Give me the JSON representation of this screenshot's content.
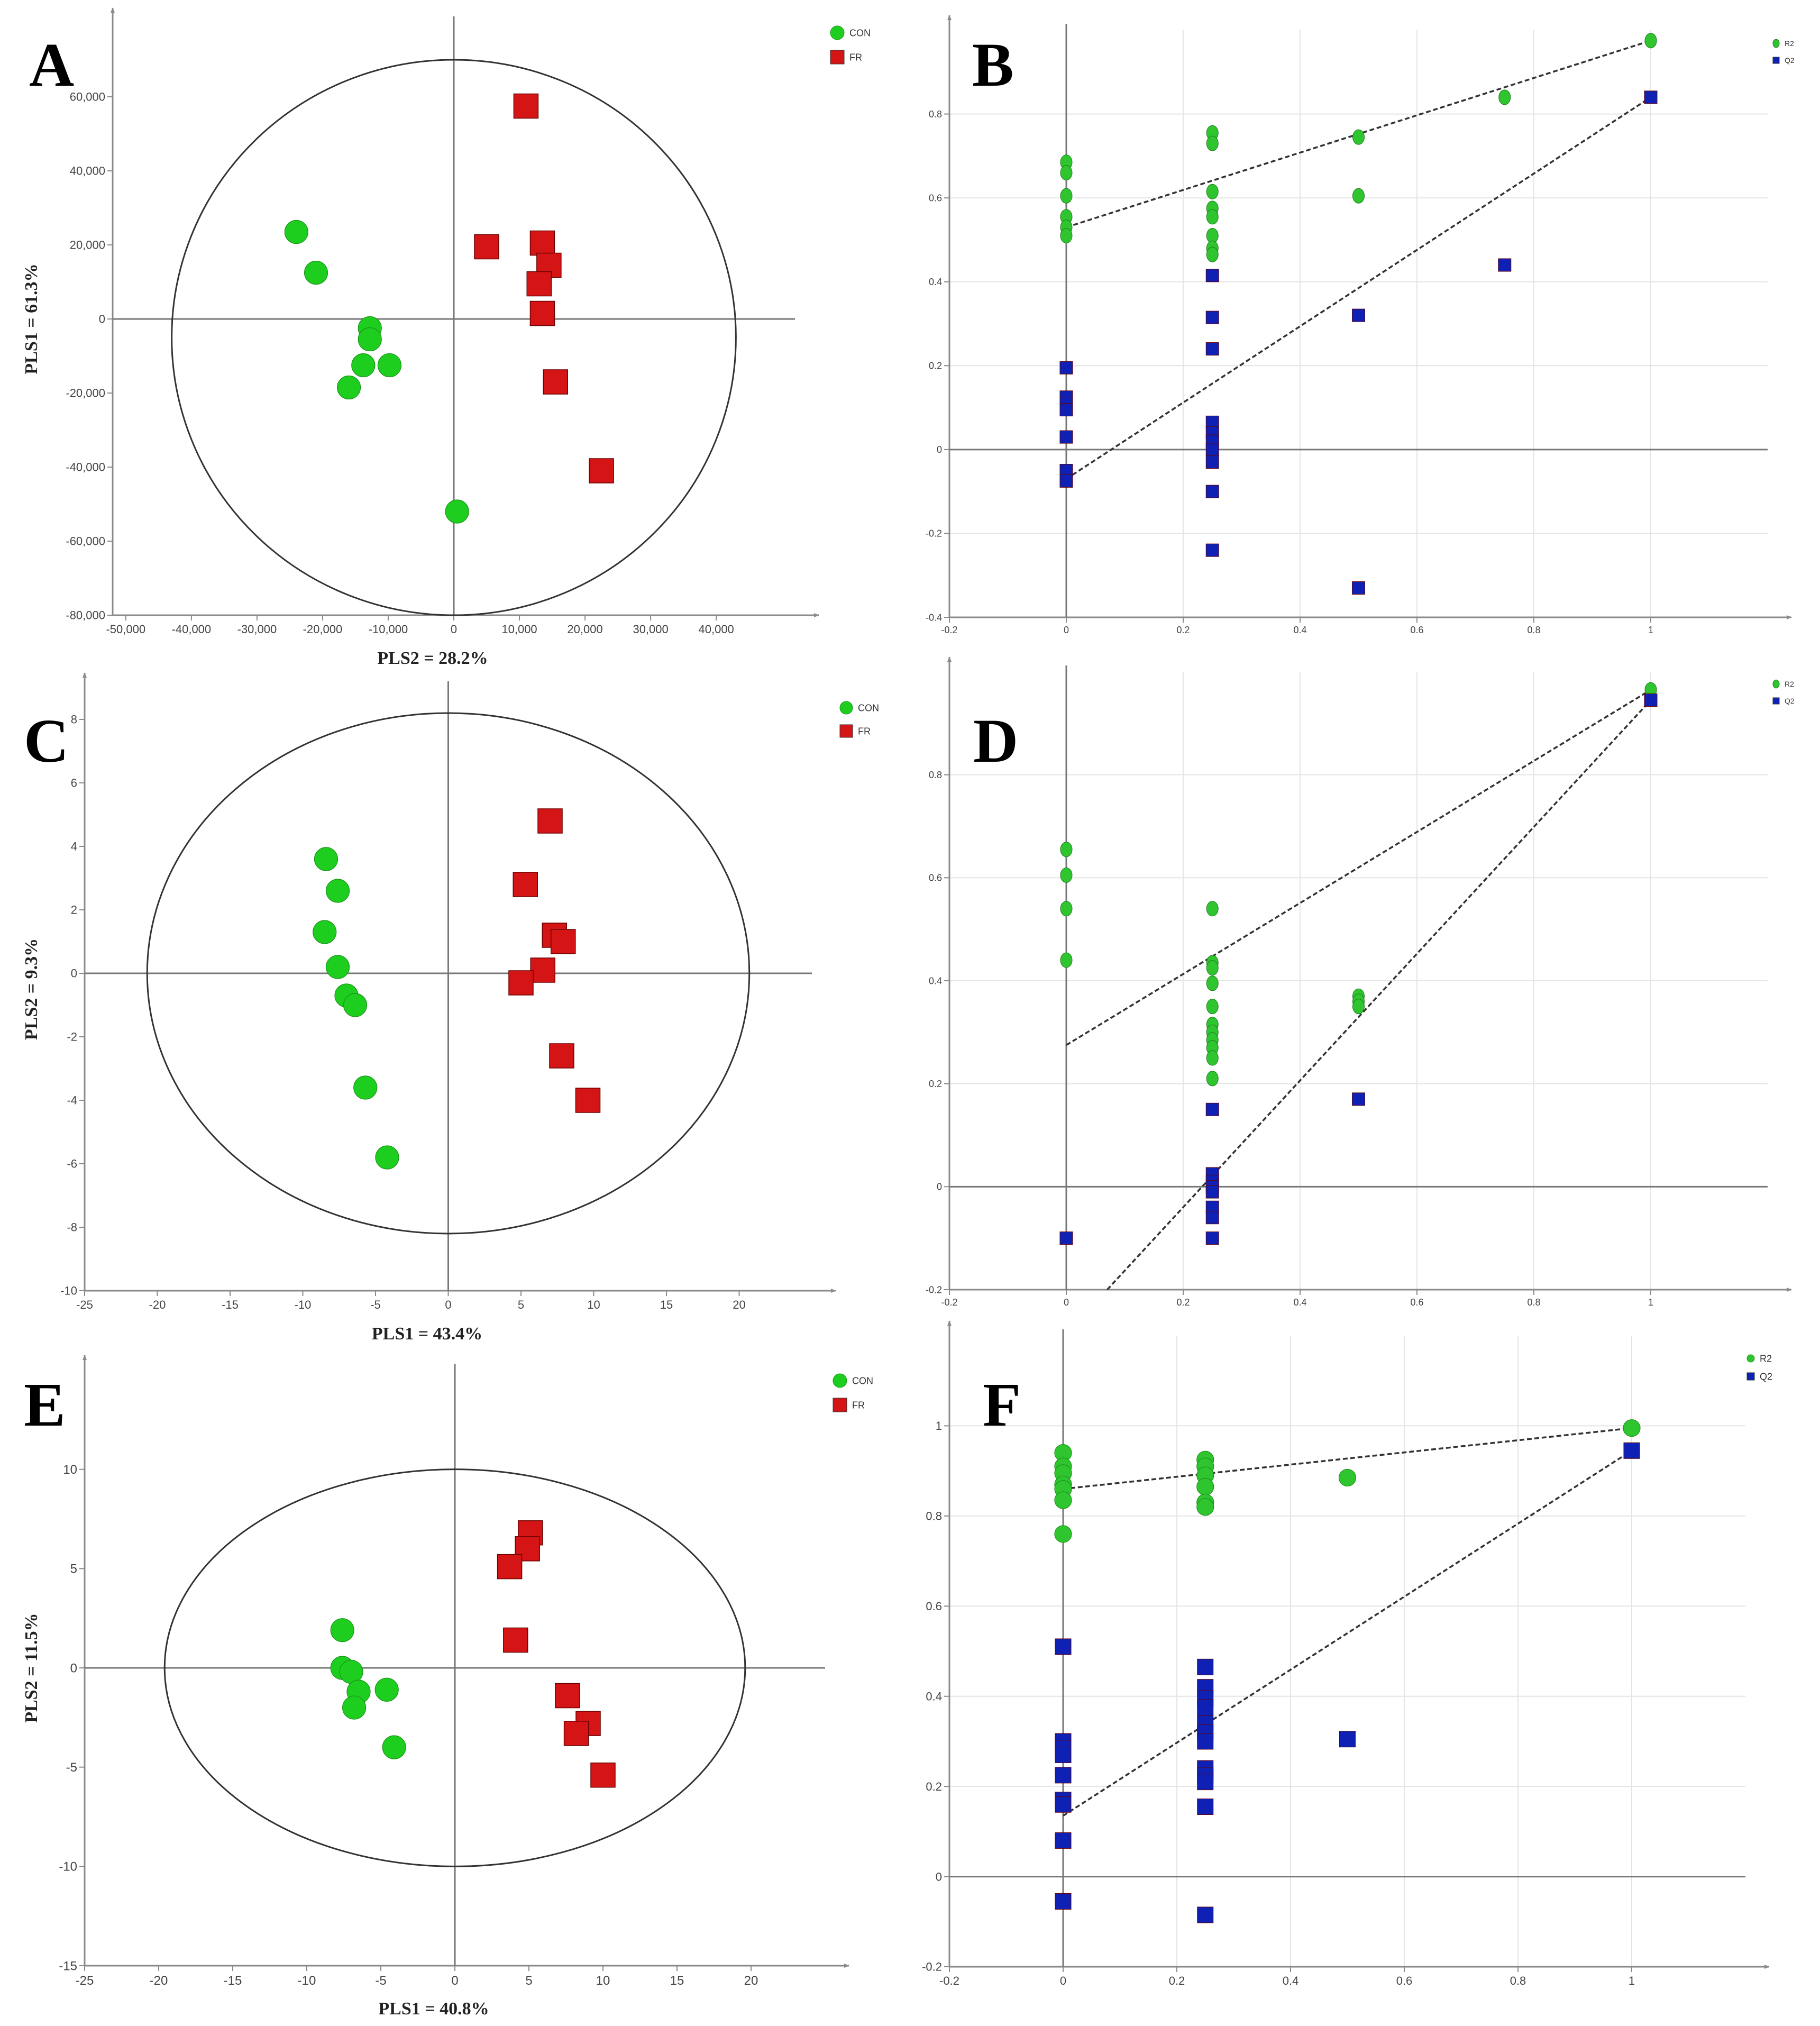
{
  "colors": {
    "con": "#1ECE1E",
    "fr": "#D51515",
    "r2": "#2FC52F",
    "q2": "#0E21B4",
    "axis": "#8a8a8a",
    "ellipse": "#333333",
    "grid": "#e4e4e4"
  },
  "chart_data": [
    {
      "id": "A",
      "letter": "A",
      "type": "scatter",
      "xlabel": "PLS2 = 28.2%",
      "ylabel": "PLS1 = 61.3%",
      "xlim": [
        -52000,
        52000
      ],
      "ylim": [
        -80000,
        80000
      ],
      "xticks": [
        -50000,
        -40000,
        -30000,
        -20000,
        -10000,
        0,
        10000,
        20000,
        30000,
        40000
      ],
      "xtick_labels": [
        "-50,000",
        "-40,000",
        "-30,000",
        "-20,000",
        "-10,000",
        "0",
        "10,000",
        "20,000",
        "30,000",
        "40,000"
      ],
      "yticks": [
        -80000,
        -60000,
        -40000,
        -20000,
        0,
        20000,
        40000,
        60000
      ],
      "ytick_labels": [
        "-80,000",
        "-60,000",
        "-40,000",
        "-20,000",
        "0",
        "20,000",
        "40,000",
        "60,000"
      ],
      "ellipse": {
        "cx": 0,
        "cy": -5000,
        "rx": 43000,
        "ry": 75000
      },
      "legend": [
        "CON",
        "FR"
      ],
      "series": [
        {
          "name": "CON",
          "marker": "circle",
          "points": [
            [
              -24000,
              23500
            ],
            [
              -21000,
              12500
            ],
            [
              -12800,
              -2500
            ],
            [
              -12800,
              -5500
            ],
            [
              -13800,
              -12500
            ],
            [
              -9800,
              -12500
            ],
            [
              -16000,
              -18500
            ],
            [
              500,
              -52000
            ]
          ]
        },
        {
          "name": "FR",
          "marker": "square",
          "points": [
            [
              11000,
              57500
            ],
            [
              5000,
              19500
            ],
            [
              13500,
              20500
            ],
            [
              14500,
              14500
            ],
            [
              13000,
              9500
            ],
            [
              13500,
              1500
            ],
            [
              15500,
              -17000
            ],
            [
              22500,
              -41000
            ]
          ]
        }
      ]
    },
    {
      "id": "B",
      "letter": "B",
      "type": "scatter",
      "xlabel": "",
      "ylabel": "",
      "xlim": [
        -0.2,
        1.2
      ],
      "ylim": [
        -0.4,
        1.0
      ],
      "xticks": [
        -0.2,
        0,
        0.2,
        0.4,
        0.6,
        0.8,
        1
      ],
      "xtick_labels": [
        "-0.2",
        "0",
        "0.2",
        "0.4",
        "0.6",
        "0.8",
        "1"
      ],
      "yticks": [
        -0.4,
        -0.2,
        0,
        0.2,
        0.4,
        0.6,
        0.8
      ],
      "ytick_labels": [
        "-0.4",
        "-0.2",
        "0",
        "0.2",
        "0.4",
        "0.6",
        "0.8"
      ],
      "legend": [
        "R2",
        "Q2"
      ],
      "series": [
        {
          "name": "R2",
          "marker": "ellipse",
          "points": [
            [
              0,
              0.685
            ],
            [
              0,
              0.66
            ],
            [
              0,
              0.605
            ],
            [
              0,
              0.555
            ],
            [
              0,
              0.53
            ],
            [
              0,
              0.51
            ],
            [
              0.25,
              0.755
            ],
            [
              0.25,
              0.73
            ],
            [
              0.25,
              0.615
            ],
            [
              0.25,
              0.575
            ],
            [
              0.25,
              0.555
            ],
            [
              0.25,
              0.51
            ],
            [
              0.25,
              0.48
            ],
            [
              0.25,
              0.465
            ],
            [
              0.5,
              0.745
            ],
            [
              0.5,
              0.605
            ],
            [
              0.75,
              0.84
            ],
            [
              1,
              0.975
            ]
          ]
        },
        {
          "name": "Q2",
          "marker": "square",
          "points": [
            [
              0,
              0.195
            ],
            [
              0,
              0.125
            ],
            [
              0,
              0.11
            ],
            [
              0,
              0.095
            ],
            [
              0,
              0.03
            ],
            [
              0,
              -0.05
            ],
            [
              0,
              -0.075
            ],
            [
              0.25,
              0.415
            ],
            [
              0.25,
              0.315
            ],
            [
              0.25,
              0.24
            ],
            [
              0.25,
              0.065
            ],
            [
              0.25,
              0.04
            ],
            [
              0.25,
              0.02
            ],
            [
              0.25,
              0.0
            ],
            [
              0.25,
              -0.03
            ],
            [
              0.25,
              -0.1
            ],
            [
              0.25,
              -0.24
            ],
            [
              0.5,
              0.32
            ],
            [
              0.5,
              -0.33
            ],
            [
              0.75,
              0.44
            ],
            [
              1,
              0.84
            ]
          ]
        }
      ],
      "lines": [
        {
          "name": "R2 regression",
          "from": [
            0,
            0.53
          ],
          "to": [
            1,
            0.975
          ]
        },
        {
          "name": "Q2 regression",
          "from": [
            0,
            -0.07
          ],
          "to": [
            1,
            0.84
          ]
        }
      ]
    },
    {
      "id": "C",
      "letter": "C",
      "type": "scatter",
      "xlabel": "PLS1 = 43.4%",
      "ylabel": "PLS2 = 9.3%",
      "xlim": [
        -25,
        25
      ],
      "ylim": [
        -10,
        9
      ],
      "xticks": [
        -25,
        -20,
        -15,
        -10,
        -5,
        0,
        5,
        10,
        15,
        20
      ],
      "xtick_labels": [
        "-25",
        "-20",
        "-15",
        "-10",
        "-5",
        "0",
        "5",
        "10",
        "15",
        "20"
      ],
      "yticks": [
        -10,
        -8,
        -6,
        -4,
        -2,
        0,
        2,
        4,
        6,
        8
      ],
      "ytick_labels": [
        "-10",
        "-8",
        "-6",
        "-4",
        "-2",
        "0",
        "2",
        "4",
        "6",
        "8"
      ],
      "ellipse": {
        "cx": 0,
        "cy": 0,
        "rx": 20.7,
        "ry": 8.2
      },
      "legend": [
        "CON",
        "FR"
      ],
      "series": [
        {
          "name": "CON",
          "marker": "circle",
          "points": [
            [
              -8.4,
              3.6
            ],
            [
              -7.6,
              2.6
            ],
            [
              -8.5,
              1.3
            ],
            [
              -7.6,
              0.2
            ],
            [
              -7.0,
              -0.7
            ],
            [
              -6.4,
              -1.0
            ],
            [
              -5.7,
              -3.6
            ],
            [
              -4.2,
              -5.8
            ]
          ]
        },
        {
          "name": "FR",
          "marker": "square",
          "points": [
            [
              7.0,
              4.8
            ],
            [
              5.3,
              2.8
            ],
            [
              7.3,
              1.2
            ],
            [
              7.9,
              1.0
            ],
            [
              6.5,
              0.1
            ],
            [
              5.0,
              -0.3
            ],
            [
              7.8,
              -2.6
            ],
            [
              9.6,
              -4.0
            ]
          ]
        }
      ]
    },
    {
      "id": "D",
      "letter": "D",
      "type": "scatter",
      "xlabel": "",
      "ylabel": "",
      "xlim": [
        -0.2,
        1.2
      ],
      "ylim": [
        -0.2,
        1.0
      ],
      "xticks": [
        -0.2,
        0,
        0.2,
        0.4,
        0.6,
        0.8,
        1
      ],
      "xtick_labels": [
        "-0.2",
        "0",
        "0.2",
        "0.4",
        "0.6",
        "0.8",
        "1"
      ],
      "yticks": [
        -0.2,
        0,
        0.2,
        0.4,
        0.6,
        0.8
      ],
      "ytick_labels": [
        "-0.2",
        "0",
        "0.2",
        "0.4",
        "0.6",
        "0.8"
      ],
      "legend": [
        "R2",
        "Q2"
      ],
      "series": [
        {
          "name": "R2",
          "marker": "ellipse",
          "points": [
            [
              0,
              0.655
            ],
            [
              0,
              0.605
            ],
            [
              0,
              0.54
            ],
            [
              0,
              0.44
            ],
            [
              0.25,
              0.54
            ],
            [
              0.25,
              0.435
            ],
            [
              0.25,
              0.425
            ],
            [
              0.25,
              0.395
            ],
            [
              0.25,
              0.35
            ],
            [
              0.25,
              0.315
            ],
            [
              0.25,
              0.3
            ],
            [
              0.25,
              0.285
            ],
            [
              0.25,
              0.27
            ],
            [
              0.25,
              0.25
            ],
            [
              0.25,
              0.21
            ],
            [
              0.5,
              0.37
            ],
            [
              0.5,
              0.36
            ],
            [
              0.5,
              0.35
            ],
            [
              1,
              0.965
            ]
          ]
        },
        {
          "name": "Q2",
          "marker": "square",
          "points": [
            [
              0,
              -0.1
            ],
            [
              0.25,
              0.15
            ],
            [
              0.25,
              0.025
            ],
            [
              0.25,
              0.01
            ],
            [
              0.25,
              0.0
            ],
            [
              0.25,
              -0.01
            ],
            [
              0.25,
              -0.04
            ],
            [
              0.25,
              -0.06
            ],
            [
              0.25,
              -0.1
            ],
            [
              0.5,
              0.17
            ],
            [
              1,
              0.945
            ]
          ]
        }
      ],
      "lines": [
        {
          "name": "R2 regression",
          "from": [
            0,
            0.275
          ],
          "to": [
            1,
            0.965
          ]
        },
        {
          "name": "Q2 regression",
          "from": [
            0.07,
            -0.2
          ],
          "to": [
            1,
            0.945
          ]
        }
      ]
    },
    {
      "id": "E",
      "letter": "E",
      "type": "scatter",
      "xlabel": "PLS1 = 40.8%",
      "ylabel": "PLS2 = 11.5%",
      "xlim": [
        -25,
        25
      ],
      "ylim": [
        -15,
        15
      ],
      "xticks": [
        -25,
        -20,
        -15,
        -10,
        -5,
        0,
        5,
        10,
        15,
        20
      ],
      "xtick_labels": [
        "-25",
        "-20",
        "-15",
        "-10",
        "-5",
        "0",
        "5",
        "10",
        "15",
        "20"
      ],
      "yticks": [
        -15,
        -10,
        -5,
        0,
        5,
        10
      ],
      "ytick_labels": [
        "-15",
        "-10",
        "-5",
        "0",
        "5",
        "10"
      ],
      "ellipse": {
        "cx": 0,
        "cy": 0,
        "rx": 19.6,
        "ry": 10.0
      },
      "legend": [
        "CON",
        "FR"
      ],
      "series": [
        {
          "name": "CON",
          "marker": "circle",
          "points": [
            [
              -7.6,
              1.9
            ],
            [
              -7.6,
              0.0
            ],
            [
              -7.0,
              -0.2
            ],
            [
              -6.5,
              -1.2
            ],
            [
              -4.6,
              -1.1
            ],
            [
              -6.8,
              -2.0
            ],
            [
              -4.1,
              -4.0
            ]
          ]
        },
        {
          "name": "FR",
          "marker": "square",
          "points": [
            [
              5.1,
              6.8
            ],
            [
              4.9,
              6.0
            ],
            [
              3.7,
              5.1
            ],
            [
              4.1,
              1.4
            ],
            [
              7.6,
              -1.4
            ],
            [
              9.0,
              -2.8
            ],
            [
              8.2,
              -3.3
            ],
            [
              10.0,
              -5.4
            ]
          ]
        }
      ]
    },
    {
      "id": "F",
      "letter": "F",
      "type": "scatter",
      "xlabel": "",
      "ylabel": "",
      "xlim": [
        -0.2,
        1.2
      ],
      "ylim": [
        -0.2,
        1.2
      ],
      "xticks": [
        -0.2,
        0,
        0.2,
        0.4,
        0.6,
        0.8,
        1
      ],
      "xtick_labels": [
        "-0.2",
        "0",
        "0.2",
        "0.4",
        "0.6",
        "0.8",
        "1"
      ],
      "yticks": [
        -0.2,
        0,
        0.2,
        0.4,
        0.6,
        0.8,
        1
      ],
      "ytick_labels": [
        "-0.2",
        "0",
        "0.2",
        "0.4",
        "0.6",
        "0.8",
        "1"
      ],
      "legend": [
        "R2",
        "Q2"
      ],
      "series": [
        {
          "name": "R2",
          "marker": "circle",
          "points": [
            [
              0,
              0.94
            ],
            [
              0,
              0.91
            ],
            [
              0,
              0.895
            ],
            [
              0,
              0.87
            ],
            [
              0,
              0.86
            ],
            [
              0,
              0.835
            ],
            [
              0,
              0.76
            ],
            [
              0.25,
              0.925
            ],
            [
              0.25,
              0.91
            ],
            [
              0.25,
              0.89
            ],
            [
              0.25,
              0.865
            ],
            [
              0.25,
              0.83
            ],
            [
              0.25,
              0.82
            ],
            [
              0.5,
              0.885
            ],
            [
              1,
              0.995
            ]
          ]
        },
        {
          "name": "Q2",
          "marker": "square",
          "points": [
            [
              0,
              0.51
            ],
            [
              0,
              0.3
            ],
            [
              0,
              0.285
            ],
            [
              0,
              0.27
            ],
            [
              0,
              0.225
            ],
            [
              0,
              0.17
            ],
            [
              0,
              0.16
            ],
            [
              0,
              0.08
            ],
            [
              0,
              -0.055
            ],
            [
              0.25,
              0.465
            ],
            [
              0.25,
              0.42
            ],
            [
              0.25,
              0.395
            ],
            [
              0.25,
              0.375
            ],
            [
              0.25,
              0.34
            ],
            [
              0.25,
              0.32
            ],
            [
              0.25,
              0.3
            ],
            [
              0.25,
              0.24
            ],
            [
              0.25,
              0.225
            ],
            [
              0.25,
              0.21
            ],
            [
              0.25,
              0.155
            ],
            [
              0.25,
              -0.085
            ],
            [
              0.5,
              0.305
            ],
            [
              1,
              0.945
            ]
          ]
        }
      ],
      "lines": [
        {
          "name": "R2 regression",
          "from": [
            0,
            0.86
          ],
          "to": [
            1,
            0.995
          ]
        },
        {
          "name": "Q2 regression",
          "from": [
            0,
            0.135
          ],
          "to": [
            1,
            0.945
          ]
        }
      ]
    }
  ]
}
